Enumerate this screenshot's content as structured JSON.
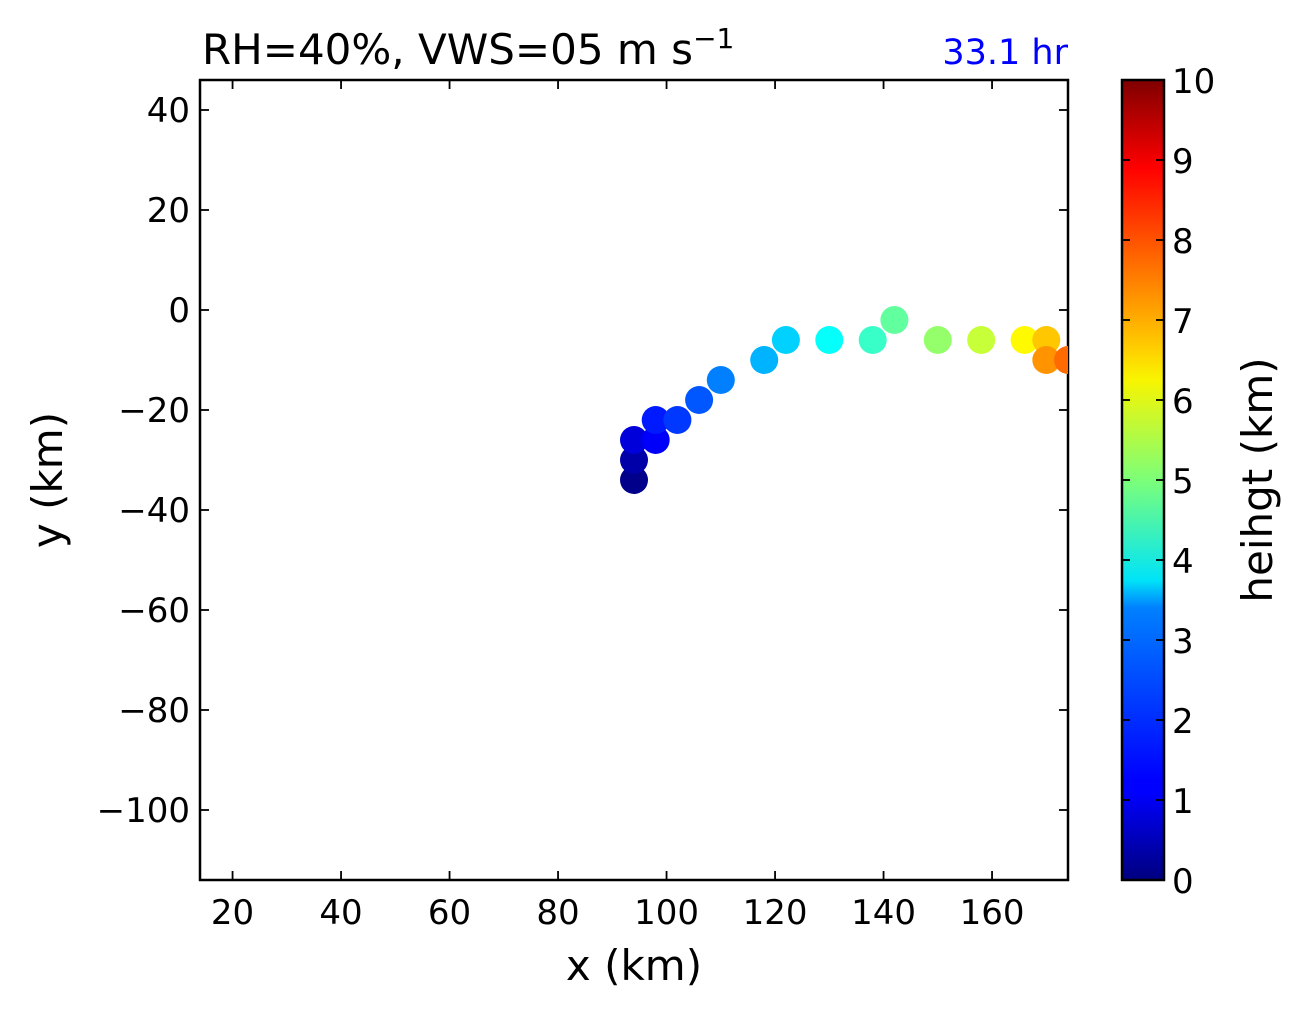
{
  "chart_data": {
    "type": "scatter",
    "title": "RH=40%, VWS=05 m s",
    "title_superscript": "−1",
    "annotation": "33.1 hr",
    "annotation_color": "#0000ff",
    "xlabel": "x (km)",
    "ylabel": "y (km)",
    "xlim": [
      14,
      174
    ],
    "ylim": [
      -114,
      46
    ],
    "xticks": [
      20,
      40,
      60,
      80,
      100,
      120,
      140,
      160
    ],
    "yticks": [
      40,
      20,
      0,
      -20,
      -40,
      -60,
      -80,
      -100
    ],
    "xtick_labels": [
      "20",
      "40",
      "60",
      "80",
      "100",
      "120",
      "140",
      "160"
    ],
    "ytick_labels": [
      "40",
      "20",
      "0",
      "−20",
      "−40",
      "−60",
      "−80",
      "−100"
    ],
    "grid": false,
    "colorbar": {
      "label": "heihgt (km)",
      "range": [
        0,
        10
      ],
      "colormap": "jet",
      "ticks": [
        0,
        1,
        2,
        3,
        4,
        5,
        6,
        7,
        8,
        9,
        10
      ],
      "tick_labels": [
        "0",
        "1",
        "2",
        "3",
        "4",
        "5",
        "6",
        "7",
        "8",
        "9",
        "10"
      ]
    },
    "points": [
      {
        "x": 94,
        "y": -34,
        "height": 0.1
      },
      {
        "x": 94,
        "y": -30,
        "height": 0.4
      },
      {
        "x": 94,
        "y": -26,
        "height": 0.9
      },
      {
        "x": 98,
        "y": -26,
        "height": 1.2
      },
      {
        "x": 98,
        "y": -22,
        "height": 1.5
      },
      {
        "x": 102,
        "y": -22,
        "height": 1.8
      },
      {
        "x": 106,
        "y": -18,
        "height": 2.1
      },
      {
        "x": 110,
        "y": -14,
        "height": 2.5
      },
      {
        "x": 118,
        "y": -10,
        "height": 3.0
      },
      {
        "x": 122,
        "y": -6,
        "height": 3.3
      },
      {
        "x": 130,
        "y": -6,
        "height": 3.8
      },
      {
        "x": 138,
        "y": -6,
        "height": 4.3
      },
      {
        "x": 142,
        "y": -2,
        "height": 4.7
      },
      {
        "x": 150,
        "y": -6,
        "height": 5.2
      },
      {
        "x": 158,
        "y": -6,
        "height": 5.7
      },
      {
        "x": 166,
        "y": -6,
        "height": 6.3
      },
      {
        "x": 170,
        "y": -6,
        "height": 6.8
      },
      {
        "x": 170,
        "y": -10,
        "height": 7.3
      },
      {
        "x": 174,
        "y": -10,
        "height": 7.7
      }
    ]
  }
}
